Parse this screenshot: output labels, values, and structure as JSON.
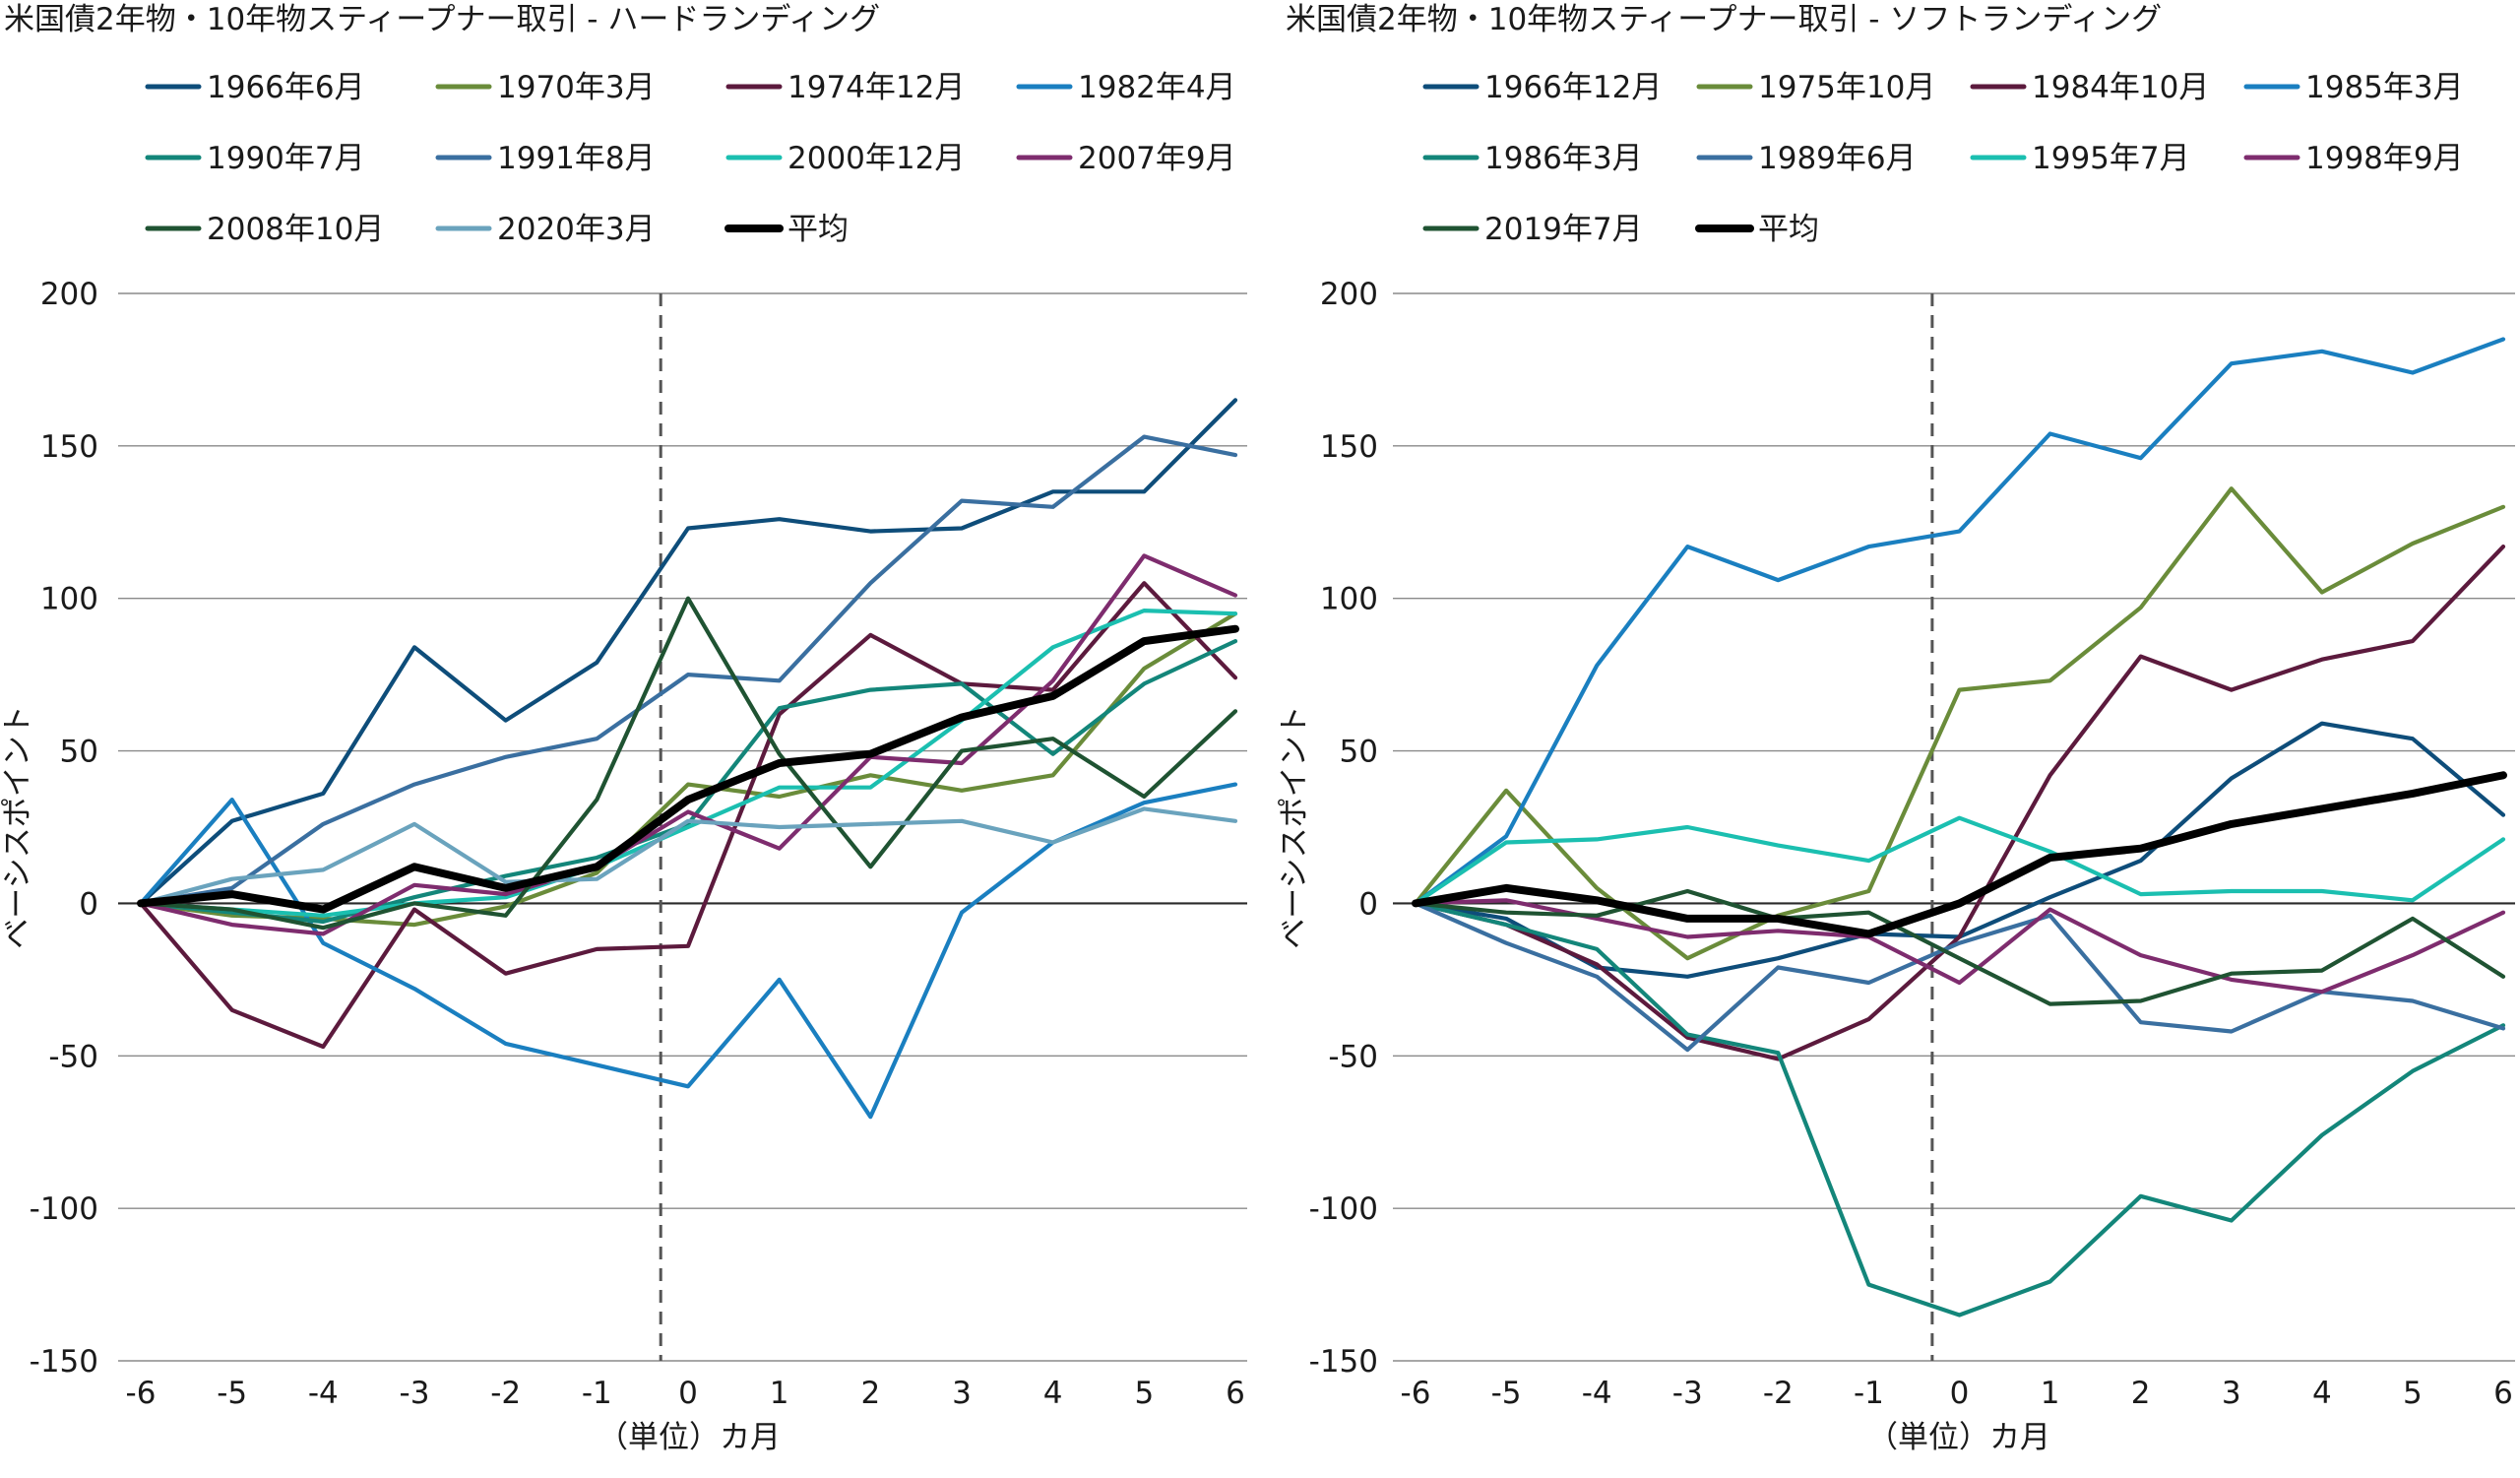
{
  "chart_data": [
    {
      "id": "hard",
      "type": "line",
      "title": "米国債2年物・10年物スティープナー取引 - ハードランディング",
      "xlabel": "（単位）カ月",
      "ylabel": "ベーシスポイント",
      "x": [
        -6,
        -5,
        -4,
        -3,
        -2,
        -1,
        0,
        1,
        2,
        3,
        4,
        5,
        6
      ],
      "x_tick_labels": [
        "-6",
        "-5",
        "-4",
        "-3",
        "-2",
        "-1",
        "0",
        "1",
        "2",
        "3",
        "4",
        "5",
        "6"
      ],
      "ylim": [
        -150,
        200
      ],
      "y_ticks": [
        -150,
        -100,
        -50,
        0,
        50,
        100,
        150,
        200
      ],
      "y_tick_labels": [
        "-150",
        "-100",
        "-50",
        "0",
        "50",
        "100",
        "150",
        "200"
      ],
      "vertical_marker_x": -0.3,
      "legend_columns": 4,
      "series": [
        {
          "name": "1966年6月",
          "color": "#0e4d7a",
          "values": [
            0,
            27,
            36,
            84,
            60,
            79,
            123,
            126,
            122,
            123,
            135,
            135,
            165
          ]
        },
        {
          "name": "1970年3月",
          "color": "#6a8c3a",
          "values": [
            0,
            -4,
            -5,
            -7,
            -1,
            10,
            39,
            35,
            42,
            37,
            42,
            77,
            95
          ]
        },
        {
          "name": "1974年12月",
          "color": "#5c1a3d",
          "values": [
            0,
            -35,
            -47,
            -2,
            -23,
            -15,
            -14,
            62,
            88,
            72,
            70,
            105,
            74
          ]
        },
        {
          "name": "1982年4月",
          "color": "#1a7fc0",
          "values": [
            0,
            34,
            -13,
            -28,
            -46,
            -53,
            -60,
            -25,
            -70,
            -3,
            20,
            33,
            39
          ]
        },
        {
          "name": "1990年7月",
          "color": "#13867a",
          "values": [
            0,
            -3,
            -6,
            2,
            9,
            15,
            26,
            64,
            70,
            72,
            49,
            72,
            86
          ]
        },
        {
          "name": "1991年8月",
          "color": "#3a6fa0",
          "values": [
            0,
            5,
            26,
            39,
            48,
            54,
            75,
            73,
            105,
            132,
            130,
            153,
            147
          ]
        },
        {
          "name": "2000年12月",
          "color": "#1bbfb0",
          "values": [
            0,
            -2,
            -4,
            0,
            2,
            12,
            25,
            38,
            38,
            60,
            84,
            96,
            95
          ]
        },
        {
          "name": "2007年9月",
          "color": "#7e2c6e",
          "values": [
            0,
            -7,
            -10,
            6,
            3,
            12,
            30,
            18,
            48,
            46,
            73,
            114,
            101
          ]
        },
        {
          "name": "2008年10月",
          "color": "#1f5332",
          "values": [
            0,
            -2,
            -8,
            0,
            -4,
            34,
            100,
            49,
            12,
            50,
            54,
            35,
            63
          ]
        },
        {
          "name": "2020年3月",
          "color": "#6aa3bd",
          "values": [
            0,
            8,
            11,
            26,
            7,
            8,
            27,
            25,
            26,
            27,
            20,
            31,
            27
          ]
        },
        {
          "name": "平均",
          "color": "#000000",
          "thick": true,
          "values": [
            0,
            3,
            -2,
            12,
            5,
            12,
            34,
            46,
            49,
            61,
            68,
            86,
            90
          ]
        }
      ]
    },
    {
      "id": "soft",
      "type": "line",
      "title": "米国債2年物・10年物スティープナー取引 - ソフトランディング",
      "xlabel": "（単位）カ月",
      "ylabel": "ベーシスポイント",
      "x": [
        -6,
        -5,
        -4,
        -3,
        -2,
        -1,
        0,
        1,
        2,
        3,
        4,
        5,
        6
      ],
      "x_tick_labels": [
        "-6",
        "-5",
        "-4",
        "-3",
        "-2",
        "-1",
        "0",
        "1",
        "2",
        "3",
        "4",
        "5",
        "6"
      ],
      "ylim": [
        -150,
        200
      ],
      "y_ticks": [
        -150,
        -100,
        -50,
        0,
        50,
        100,
        150,
        200
      ],
      "y_tick_labels": [
        "-150",
        "-100",
        "-50",
        "0",
        "50",
        "100",
        "150",
        "200"
      ],
      "vertical_marker_x": -0.3,
      "legend_columns": 4,
      "series": [
        {
          "name": "1966年12月",
          "color": "#0e4d7a",
          "values": [
            0,
            -5,
            -21,
            -24,
            -18,
            -10,
            -11,
            2,
            14,
            41,
            59,
            54,
            29
          ]
        },
        {
          "name": "1975年10月",
          "color": "#6a8c3a",
          "values": [
            0,
            37,
            5,
            -18,
            -4,
            4,
            70,
            73,
            97,
            136,
            102,
            118,
            130
          ]
        },
        {
          "name": "1984年10月",
          "color": "#5c1a3d",
          "values": [
            0,
            -7,
            -20,
            -44,
            -51,
            -38,
            -11,
            42,
            81,
            70,
            80,
            86,
            117
          ]
        },
        {
          "name": "1985年3月",
          "color": "#1a7fc0",
          "values": [
            0,
            22,
            78,
            117,
            106,
            117,
            122,
            154,
            146,
            177,
            181,
            174,
            185
          ]
        },
        {
          "name": "1986年3月",
          "color": "#13867a",
          "values": [
            0,
            -7,
            -15,
            -43,
            -49,
            -125,
            -135,
            -124,
            -96,
            -104,
            -76,
            -55,
            -40
          ]
        },
        {
          "name": "1989年6月",
          "color": "#3a6fa0",
          "values": [
            0,
            -13,
            -24,
            -48,
            -21,
            -26,
            -13,
            -4,
            -39,
            -42,
            -29,
            -32,
            -41
          ]
        },
        {
          "name": "1995年7月",
          "color": "#1bbfb0",
          "values": [
            0,
            20,
            21,
            25,
            19,
            14,
            28,
            17,
            3,
            4,
            4,
            1,
            21
          ]
        },
        {
          "name": "1998年9月",
          "color": "#7e2c6e",
          "values": [
            0,
            1,
            -5,
            -11,
            -9,
            -11,
            -26,
            -2,
            -17,
            -25,
            -29,
            -17,
            -3
          ]
        },
        {
          "name": "2019年7月",
          "color": "#1f5332",
          "values": [
            0,
            -3,
            -4,
            4,
            -5,
            -3,
            -18,
            -33,
            -32,
            -23,
            -22,
            -5,
            -24
          ]
        },
        {
          "name": "平均",
          "color": "#000000",
          "thick": true,
          "values": [
            0,
            5,
            1,
            -5,
            -5,
            -10,
            0,
            15,
            18,
            26,
            31,
            36,
            42
          ]
        }
      ]
    }
  ]
}
